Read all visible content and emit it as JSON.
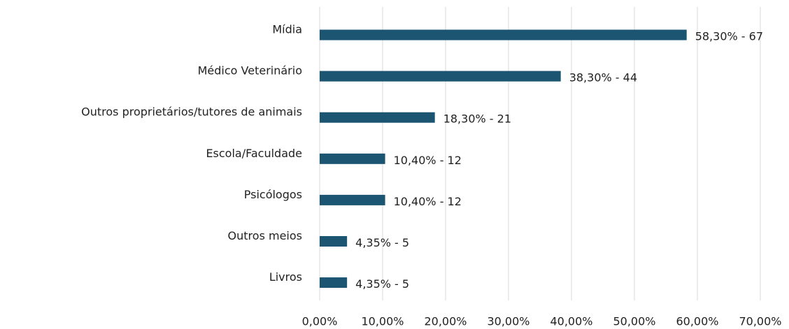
{
  "chart_data": {
    "type": "bar",
    "orientation": "horizontal",
    "categories": [
      "Mídia",
      "Médico Veterinário",
      "Outros proprietários/tutores de animais",
      "Escola/Faculdade",
      "Psicólogos",
      "Outros meios",
      "Livros"
    ],
    "values": [
      58.3,
      38.3,
      18.3,
      10.4,
      10.4,
      4.35,
      4.35
    ],
    "value_labels": [
      "58,30% - 67",
      "38,30% - 44",
      "18,30% - 21",
      "10,40% - 12",
      "10,40% - 12",
      "4,35% - 5",
      "4,35% - 5"
    ],
    "color": "#1b5571",
    "xlim": [
      0,
      70
    ],
    "xticks": [
      {
        "value": 0,
        "label": "0,00%"
      },
      {
        "value": 10,
        "label": "10,00%"
      },
      {
        "value": 20,
        "label": "20,00%"
      },
      {
        "value": 30,
        "label": "30,00%"
      },
      {
        "value": 40,
        "label": "40,00%"
      },
      {
        "value": 50,
        "label": "50,00%"
      },
      {
        "value": 60,
        "label": "60,00%"
      },
      {
        "value": 70,
        "label": "70,00%"
      }
    ],
    "grid": true
  }
}
